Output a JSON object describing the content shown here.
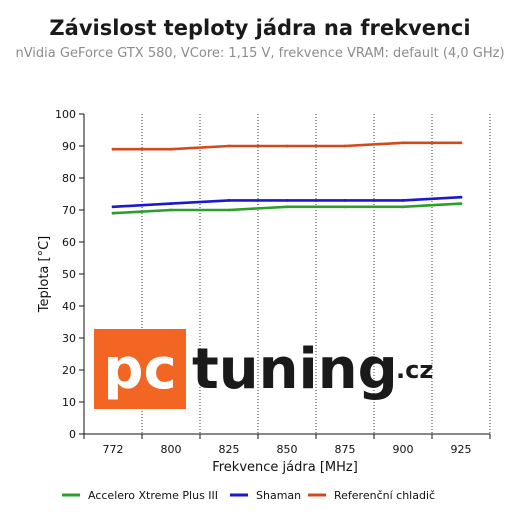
{
  "colors": {
    "accelero": "#2aa02a",
    "shaman": "#1a1acc",
    "referencni": "#d24a1a",
    "logo_box": "#f26522",
    "logo_text": "#1a1a1a"
  },
  "watermark": {
    "text": "pctuning.cz"
  },
  "chart_data": {
    "type": "line",
    "title": "Závislost teploty jádra na frekvenci",
    "subtitle": "nVidia GeForce GTX 580, VCore: 1,15 V, frekvence VRAM: default (4,0 GHz)",
    "xlabel": "Frekvence jádra [MHz]",
    "ylabel": "Teplota [°C]",
    "categories": [
      "772",
      "800",
      "825",
      "850",
      "875",
      "900",
      "925"
    ],
    "ylim": [
      0,
      100
    ],
    "yticks": [
      "0",
      "10",
      "20",
      "30",
      "40",
      "50",
      "60",
      "70",
      "80",
      "90",
      "100"
    ],
    "grid": "vertical dotted",
    "legend_position": "bottom",
    "series": [
      {
        "name": "Accelero Xtreme Plus III",
        "color": "#2aa02a",
        "values": [
          69,
          70,
          70,
          71,
          71,
          71,
          72
        ]
      },
      {
        "name": "Shaman",
        "color": "#1a1acc",
        "values": [
          71,
          72,
          73,
          73,
          73,
          73,
          74
        ]
      },
      {
        "name": "Referenční chladič",
        "color": "#d24a1a",
        "values": [
          89,
          89,
          90,
          90,
          90,
          91,
          91
        ]
      }
    ]
  }
}
